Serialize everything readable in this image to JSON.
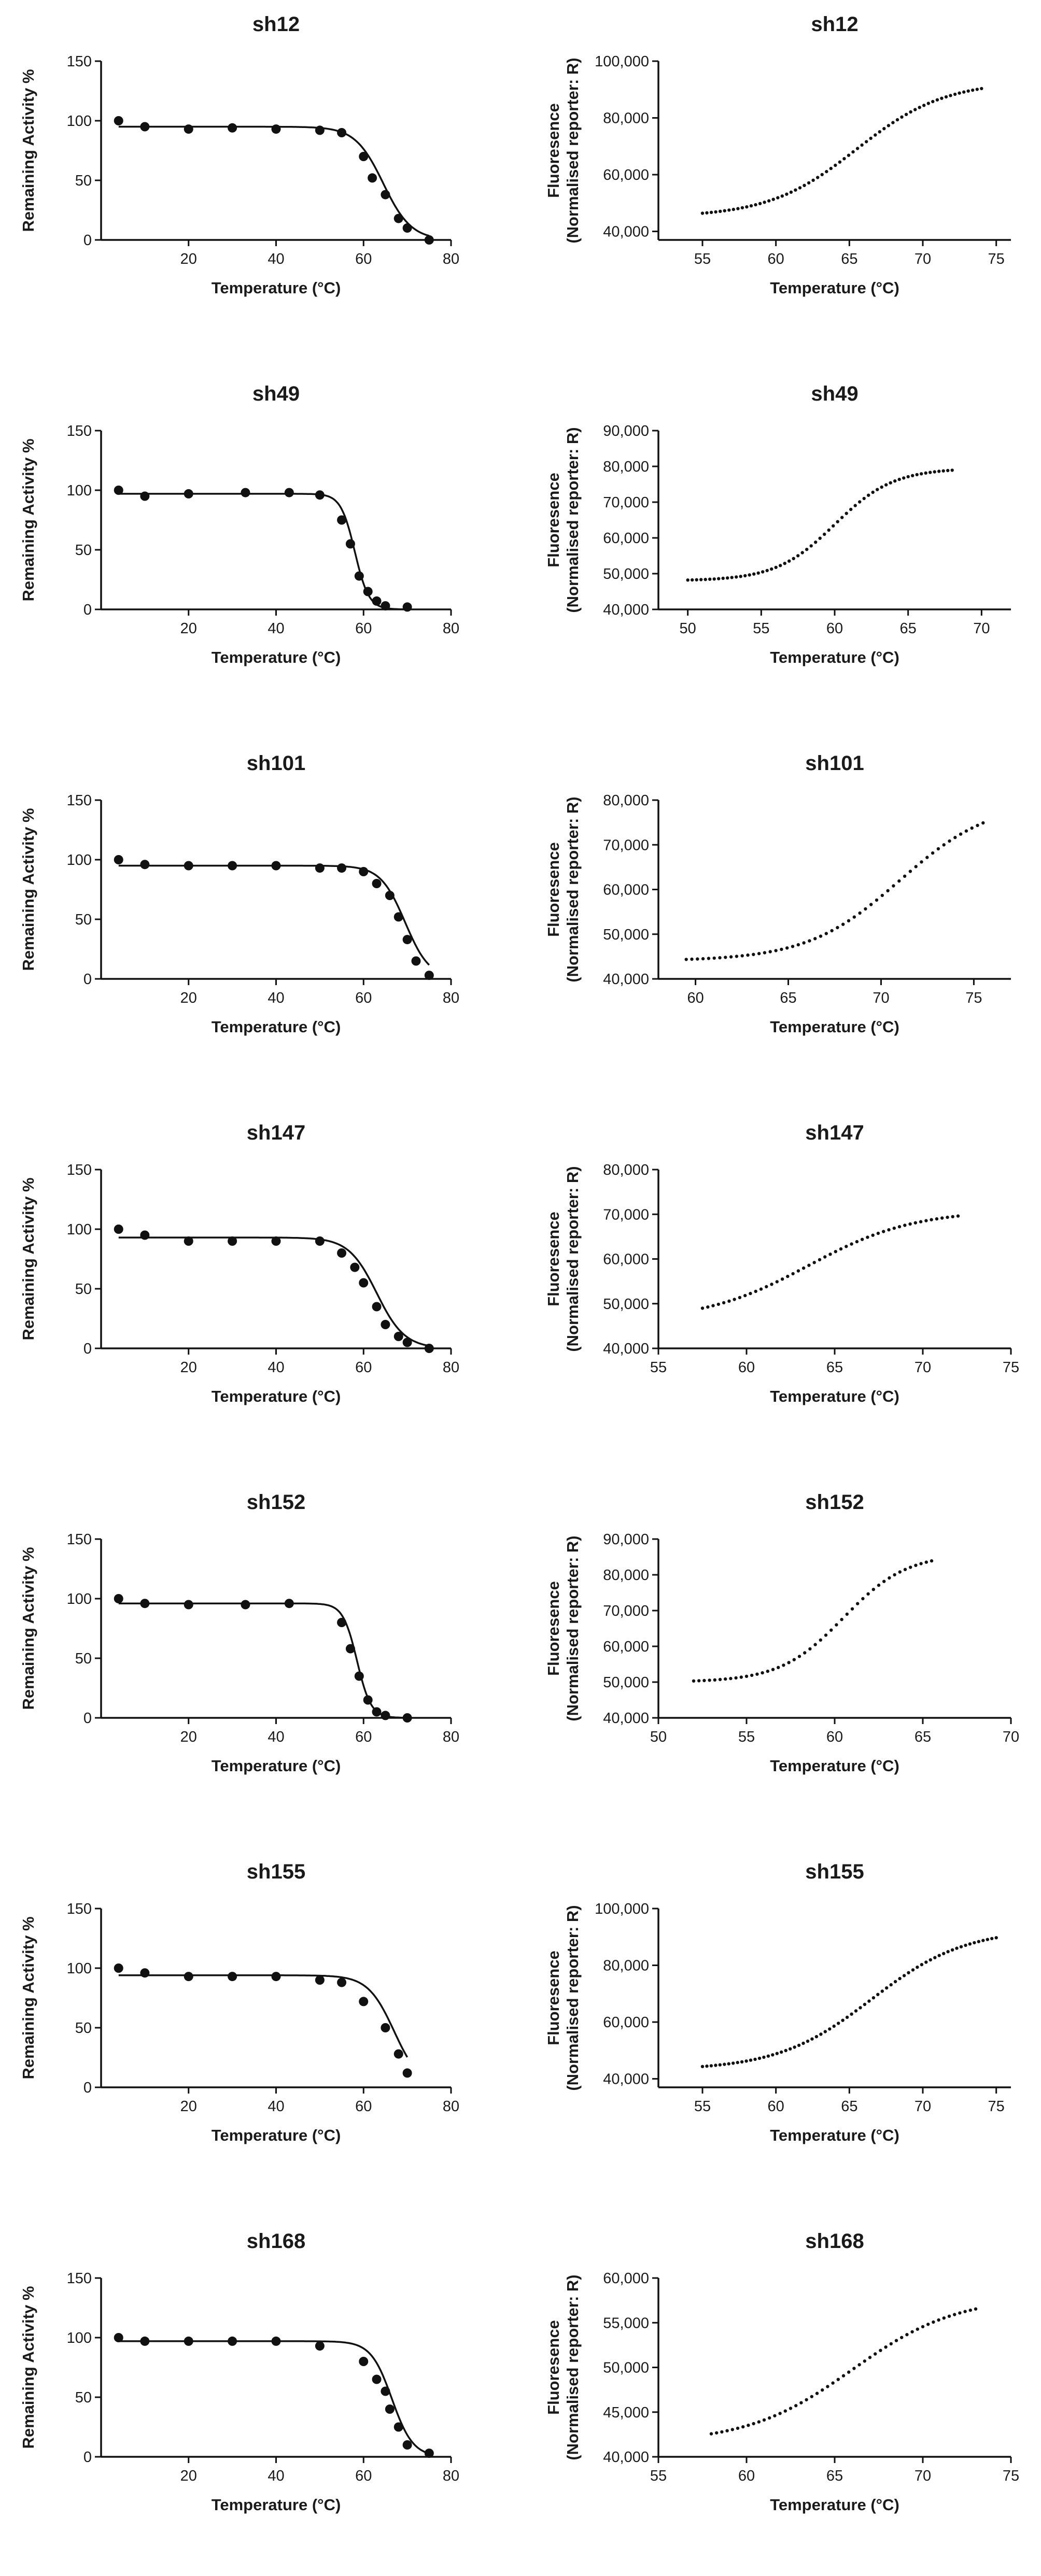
{
  "chart_data": [
    {
      "id": "sh12-activity",
      "type": "scatter",
      "title": "sh12",
      "xlabel": "Temperature (°C)",
      "ylabel": "Remaining Activity %",
      "xlim": [
        0,
        80
      ],
      "ylim": [
        0,
        150
      ],
      "xticks": [
        20,
        40,
        60,
        80
      ],
      "yticks": [
        0,
        50,
        100,
        150
      ],
      "xtick_labels": [
        "20",
        "40",
        "60",
        "80"
      ],
      "ytick_labels": [
        "0",
        "50",
        "100",
        "150"
      ],
      "x": [
        4,
        10,
        20,
        30,
        40,
        50,
        55,
        60,
        62,
        65,
        68,
        70,
        75
      ],
      "y": [
        100,
        95,
        93,
        94,
        93,
        92,
        90,
        70,
        52,
        38,
        18,
        10,
        0
      ],
      "fit": {
        "top": 95,
        "bottom": 0,
        "tm": 64.5,
        "slope": 3.2
      }
    },
    {
      "id": "sh12-fluorescence",
      "type": "line",
      "title": "sh12",
      "xlabel": "Temperature (°C)",
      "ylabel": "Fluoresence",
      "ylabel2": "(Normalised reporter: R)",
      "xlim": [
        52,
        76
      ],
      "ylim": [
        37000,
        100000
      ],
      "xticks": [
        55,
        60,
        65,
        70,
        75
      ],
      "yticks": [
        40000,
        60000,
        80000,
        100000
      ],
      "xtick_labels": [
        "55",
        "60",
        "65",
        "70",
        "75"
      ],
      "ytick_labels": [
        "40,000",
        "60,000",
        "80,000",
        "100,000"
      ],
      "x_range": [
        55,
        74
      ],
      "curve": {
        "bottom": 45000,
        "top": 93000,
        "tm": 65.5,
        "slope": 3
      }
    },
    {
      "id": "sh49-activity",
      "type": "scatter",
      "title": "sh49",
      "xlabel": "Temperature (°C)",
      "ylabel": "Remaining Activity %",
      "xlim": [
        0,
        80
      ],
      "ylim": [
        0,
        150
      ],
      "xticks": [
        20,
        40,
        60,
        80
      ],
      "yticks": [
        0,
        50,
        100,
        150
      ],
      "xtick_labels": [
        "20",
        "40",
        "60",
        "80"
      ],
      "ytick_labels": [
        "0",
        "50",
        "100",
        "150"
      ],
      "x": [
        4,
        10,
        20,
        33,
        43,
        50,
        55,
        57,
        59,
        61,
        63,
        65,
        70
      ],
      "y": [
        100,
        95,
        97,
        98,
        98,
        96,
        75,
        55,
        28,
        15,
        7,
        3,
        2
      ],
      "fit": {
        "top": 97,
        "bottom": 0,
        "tm": 58,
        "slope": 1.6
      }
    },
    {
      "id": "sh49-fluorescence",
      "type": "line",
      "title": "sh49",
      "xlabel": "Temperature (°C)",
      "ylabel": "Fluoresence",
      "ylabel2": "(Normalised reporter: R)",
      "xlim": [
        48,
        72
      ],
      "ylim": [
        40000,
        90000
      ],
      "xticks": [
        50,
        55,
        60,
        65,
        70
      ],
      "yticks": [
        40000,
        50000,
        60000,
        70000,
        80000,
        90000
      ],
      "xtick_labels": [
        "50",
        "55",
        "60",
        "65",
        "70"
      ],
      "ytick_labels": [
        "40,000",
        "50,000",
        "60,000",
        "70,000",
        "80,000",
        "90,000"
      ],
      "x_range": [
        50,
        68
      ],
      "curve": {
        "bottom": 48000,
        "top": 79500,
        "tm": 60,
        "slope": 2
      }
    },
    {
      "id": "sh101-activity",
      "type": "scatter",
      "title": "sh101",
      "xlabel": "Temperature (°C)",
      "ylabel": "Remaining Activity %",
      "xlim": [
        0,
        80
      ],
      "ylim": [
        0,
        150
      ],
      "xticks": [
        20,
        40,
        60,
        80
      ],
      "yticks": [
        0,
        50,
        100,
        150
      ],
      "xtick_labels": [
        "20",
        "40",
        "60",
        "80"
      ],
      "ytick_labels": [
        "0",
        "50",
        "100",
        "150"
      ],
      "x": [
        4,
        10,
        20,
        30,
        40,
        50,
        55,
        60,
        63,
        66,
        68,
        70,
        72,
        75
      ],
      "y": [
        100,
        96,
        95,
        95,
        95,
        93,
        93,
        90,
        80,
        70,
        52,
        33,
        15,
        3
      ],
      "fit": {
        "top": 95,
        "bottom": 0,
        "tm": 69.5,
        "slope": 2.8
      }
    },
    {
      "id": "sh101-fluorescence",
      "type": "line",
      "title": "sh101",
      "xlabel": "Temperature (°C)",
      "ylabel": "Fluoresence",
      "ylabel2": "(Normalised reporter: R)",
      "xlim": [
        58,
        77
      ],
      "ylim": [
        40000,
        80000
      ],
      "xticks": [
        60,
        65,
        70,
        75
      ],
      "yticks": [
        40000,
        50000,
        60000,
        70000,
        80000
      ],
      "xtick_labels": [
        "60",
        "65",
        "70",
        "75"
      ],
      "ytick_labels": [
        "40,000",
        "50,000",
        "60,000",
        "70,000",
        "80,000"
      ],
      "x_range": [
        59.5,
        75.5
      ],
      "curve": {
        "bottom": 44000,
        "top": 80000,
        "tm": 71,
        "slope": 2.5
      }
    },
    {
      "id": "sh147-activity",
      "type": "scatter",
      "title": "sh147",
      "xlabel": "Temperature (°C)",
      "ylabel": "Remaining Activity %",
      "xlim": [
        0,
        80
      ],
      "ylim": [
        0,
        150
      ],
      "xticks": [
        20,
        40,
        60,
        80
      ],
      "yticks": [
        0,
        50,
        100,
        150
      ],
      "xtick_labels": [
        "20",
        "40",
        "60",
        "80"
      ],
      "ytick_labels": [
        "0",
        "50",
        "100",
        "150"
      ],
      "x": [
        4,
        10,
        20,
        30,
        40,
        50,
        55,
        58,
        60,
        63,
        65,
        68,
        70,
        75
      ],
      "y": [
        100,
        95,
        90,
        90,
        90,
        90,
        80,
        68,
        55,
        35,
        20,
        10,
        5,
        0
      ],
      "fit": {
        "top": 93,
        "bottom": 0,
        "tm": 63,
        "slope": 3.2
      }
    },
    {
      "id": "sh147-fluorescence",
      "type": "line",
      "title": "sh147",
      "xlabel": "Temperature (°C)",
      "ylabel": "Fluoresence",
      "ylabel2": "(Normalised reporter: R)",
      "xlim": [
        55,
        75
      ],
      "ylim": [
        40000,
        80000
      ],
      "xticks": [
        55,
        60,
        65,
        70,
        75
      ],
      "yticks": [
        40000,
        50000,
        60000,
        70000,
        80000
      ],
      "xtick_labels": [
        "55",
        "60",
        "65",
        "70",
        "75"
      ],
      "ytick_labels": [
        "40,000",
        "50,000",
        "60,000",
        "70,000",
        "80,000"
      ],
      "x_range": [
        57.5,
        72
      ],
      "curve": {
        "bottom": 46000,
        "top": 71000,
        "tm": 63.5,
        "slope": 3
      }
    },
    {
      "id": "sh152-activity",
      "type": "scatter",
      "title": "sh152",
      "xlabel": "Temperature (°C)",
      "ylabel": "Remaining Activity %",
      "xlim": [
        0,
        80
      ],
      "ylim": [
        0,
        150
      ],
      "xticks": [
        20,
        40,
        60,
        80
      ],
      "yticks": [
        0,
        50,
        100,
        150
      ],
      "xtick_labels": [
        "20",
        "40",
        "60",
        "80"
      ],
      "ytick_labels": [
        "0",
        "50",
        "100",
        "150"
      ],
      "x": [
        4,
        10,
        20,
        33,
        43,
        55,
        57,
        59,
        61,
        63,
        65,
        70
      ],
      "y": [
        100,
        96,
        95,
        95,
        96,
        80,
        58,
        35,
        15,
        5,
        2,
        0
      ],
      "fit": {
        "top": 96,
        "bottom": 0,
        "tm": 58.5,
        "slope": 1.6
      }
    },
    {
      "id": "sh152-fluorescence",
      "type": "line",
      "title": "sh152",
      "xlabel": "Temperature (°C)",
      "ylabel": "Fluoresence",
      "ylabel2": "(Normalised reporter: R)",
      "xlim": [
        50,
        70
      ],
      "ylim": [
        40000,
        90000
      ],
      "xticks": [
        50,
        55,
        60,
        65,
        70
      ],
      "yticks": [
        40000,
        50000,
        60000,
        70000,
        80000,
        90000
      ],
      "xtick_labels": [
        "50",
        "55",
        "60",
        "65",
        "70"
      ],
      "ytick_labels": [
        "40,000",
        "50,000",
        "60,000",
        "70,000",
        "80,000",
        "90,000"
      ],
      "x_range": [
        52,
        65.5
      ],
      "curve": {
        "bottom": 50000,
        "top": 86000,
        "tm": 60.5,
        "slope": 1.8
      }
    },
    {
      "id": "sh155-activity",
      "type": "scatter",
      "title": "sh155",
      "xlabel": "Temperature (°C)",
      "ylabel": "Remaining Activity %",
      "xlim": [
        0,
        80
      ],
      "ylim": [
        0,
        150
      ],
      "xticks": [
        20,
        40,
        60,
        80
      ],
      "yticks": [
        0,
        50,
        100,
        150
      ],
      "xtick_labels": [
        "20",
        "40",
        "60",
        "80"
      ],
      "ytick_labels": [
        "0",
        "50",
        "100",
        "150"
      ],
      "x": [
        4,
        10,
        20,
        30,
        40,
        50,
        55,
        60,
        65,
        68,
        70
      ],
      "y": [
        100,
        96,
        93,
        93,
        93,
        90,
        88,
        72,
        50,
        28,
        12
      ],
      "fit": {
        "top": 94,
        "bottom": 0,
        "tm": 67,
        "slope": 3
      }
    },
    {
      "id": "sh155-fluorescence",
      "type": "line",
      "title": "sh155",
      "xlabel": "Temperature (°C)",
      "ylabel": "Fluoresence",
      "ylabel2": "(Normalised reporter: R)",
      "xlim": [
        52,
        76
      ],
      "ylim": [
        37000,
        100000
      ],
      "xticks": [
        55,
        60,
        65,
        70,
        75
      ],
      "yticks": [
        40000,
        60000,
        80000,
        100000
      ],
      "xtick_labels": [
        "55",
        "60",
        "65",
        "70",
        "75"
      ],
      "ytick_labels": [
        "40,000",
        "60,000",
        "80,000",
        "100,000"
      ],
      "x_range": [
        55,
        75
      ],
      "curve": {
        "bottom": 43000,
        "top": 93000,
        "tm": 66.5,
        "slope": 3.2
      }
    },
    {
      "id": "sh168-activity",
      "type": "scatter",
      "title": "sh168",
      "xlabel": "Temperature (°C)",
      "ylabel": "Remaining Activity %",
      "xlim": [
        0,
        80
      ],
      "ylim": [
        0,
        150
      ],
      "xticks": [
        20,
        40,
        60,
        80
      ],
      "yticks": [
        0,
        50,
        100,
        150
      ],
      "xtick_labels": [
        "20",
        "40",
        "60",
        "80"
      ],
      "ytick_labels": [
        "0",
        "50",
        "100",
        "150"
      ],
      "x": [
        4,
        10,
        20,
        30,
        40,
        50,
        60,
        63,
        65,
        66,
        68,
        70,
        75
      ],
      "y": [
        100,
        97,
        97,
        97,
        97,
        93,
        80,
        65,
        55,
        40,
        25,
        10,
        3
      ],
      "fit": {
        "top": 97,
        "bottom": 0,
        "tm": 66.5,
        "slope": 2.4
      }
    },
    {
      "id": "sh168-fluorescence",
      "type": "line",
      "title": "sh168",
      "xlabel": "Temperature (°C)",
      "ylabel": "Fluoresence",
      "ylabel2": "(Normalised reporter: R)",
      "xlim": [
        55,
        75
      ],
      "ylim": [
        40000,
        60000
      ],
      "xticks": [
        55,
        60,
        65,
        70,
        75
      ],
      "yticks": [
        40000,
        45000,
        50000,
        55000,
        60000
      ],
      "xtick_labels": [
        "55",
        "60",
        "65",
        "70",
        "75"
      ],
      "ytick_labels": [
        "40,000",
        "45,000",
        "50,000",
        "55,000",
        "60,000"
      ],
      "x_range": [
        58,
        73
      ],
      "curve": {
        "bottom": 41500,
        "top": 58000,
        "tm": 66,
        "slope": 3
      }
    }
  ]
}
